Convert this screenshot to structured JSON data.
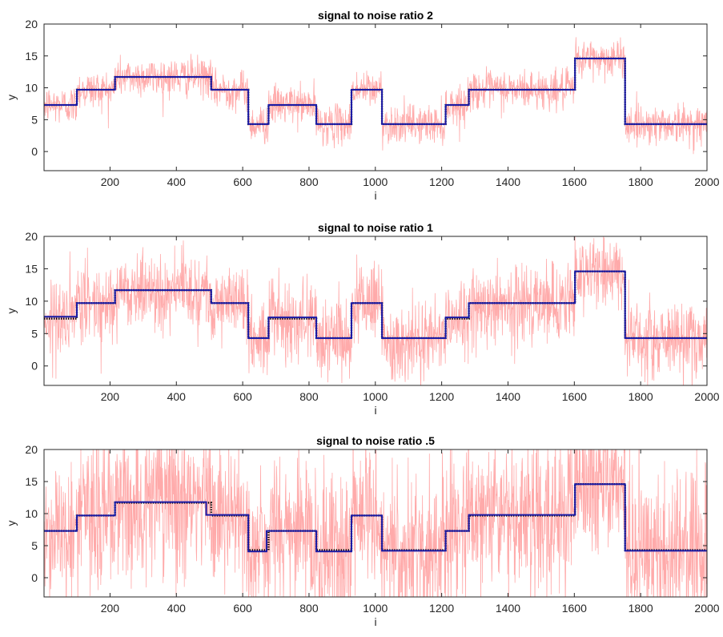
{
  "chart_data": [
    {
      "type": "line",
      "title": "signal to noise ratio 2",
      "xlabel": "i",
      "ylabel": "y",
      "xlim": [
        1,
        2000
      ],
      "ylim": [
        -3,
        20
      ],
      "xticks": [
        200,
        400,
        600,
        800,
        1000,
        1200,
        1400,
        1600,
        1800,
        2000
      ],
      "yticks": [
        0,
        5,
        10,
        15,
        20
      ],
      "noise_amplitude": 1.5,
      "grid": false,
      "series": [
        {
          "kind": "noisy_observations",
          "color": "#ffaaaa",
          "segments": [
            {
              "start": 1,
              "end": 100,
              "level": 7.3
            },
            {
              "start": 100,
              "end": 215,
              "level": 9.7
            },
            {
              "start": 215,
              "end": 505,
              "level": 11.7
            },
            {
              "start": 505,
              "end": 617,
              "level": 9.7
            },
            {
              "start": 617,
              "end": 678,
              "level": 4.3
            },
            {
              "start": 678,
              "end": 822,
              "level": 7.3
            },
            {
              "start": 822,
              "end": 928,
              "level": 4.3
            },
            {
              "start": 928,
              "end": 1020,
              "level": 9.7
            },
            {
              "start": 1020,
              "end": 1212,
              "level": 4.3
            },
            {
              "start": 1212,
              "end": 1282,
              "level": 7.3
            },
            {
              "start": 1282,
              "end": 1602,
              "level": 9.7
            },
            {
              "start": 1602,
              "end": 1753,
              "level": 14.6
            },
            {
              "start": 1753,
              "end": 2000,
              "level": 4.3
            }
          ]
        },
        {
          "kind": "true_signal",
          "color": "#000000",
          "segments": [
            {
              "start": 1,
              "end": 100,
              "level": 7.3
            },
            {
              "start": 100,
              "end": 215,
              "level": 9.7
            },
            {
              "start": 215,
              "end": 505,
              "level": 11.7
            },
            {
              "start": 505,
              "end": 617,
              "level": 9.7
            },
            {
              "start": 617,
              "end": 678,
              "level": 4.3
            },
            {
              "start": 678,
              "end": 822,
              "level": 7.3
            },
            {
              "start": 822,
              "end": 928,
              "level": 4.3
            },
            {
              "start": 928,
              "end": 1020,
              "level": 9.7
            },
            {
              "start": 1020,
              "end": 1212,
              "level": 4.3
            },
            {
              "start": 1212,
              "end": 1282,
              "level": 7.3
            },
            {
              "start": 1282,
              "end": 1602,
              "level": 9.7
            },
            {
              "start": 1602,
              "end": 1753,
              "level": 14.6
            },
            {
              "start": 1753,
              "end": 2000,
              "level": 4.3
            }
          ]
        },
        {
          "kind": "estimate",
          "color": "#1a1aa6",
          "segments": [
            {
              "start": 1,
              "end": 100,
              "level": 7.3
            },
            {
              "start": 100,
              "end": 215,
              "level": 9.7
            },
            {
              "start": 215,
              "end": 505,
              "level": 11.7
            },
            {
              "start": 505,
              "end": 617,
              "level": 9.7
            },
            {
              "start": 617,
              "end": 678,
              "level": 4.3
            },
            {
              "start": 678,
              "end": 822,
              "level": 7.3
            },
            {
              "start": 822,
              "end": 928,
              "level": 4.3
            },
            {
              "start": 928,
              "end": 1020,
              "level": 9.7
            },
            {
              "start": 1020,
              "end": 1212,
              "level": 4.3
            },
            {
              "start": 1212,
              "end": 1282,
              "level": 7.3
            },
            {
              "start": 1282,
              "end": 1602,
              "level": 9.7
            },
            {
              "start": 1602,
              "end": 1753,
              "level": 14.6
            },
            {
              "start": 1753,
              "end": 2000,
              "level": 4.3
            }
          ]
        }
      ]
    },
    {
      "type": "line",
      "title": "signal to noise ratio 1",
      "xlabel": "i",
      "ylabel": "y",
      "xlim": [
        1,
        2000
      ],
      "ylim": [
        -3,
        20
      ],
      "xticks": [
        200,
        400,
        600,
        800,
        1000,
        1200,
        1400,
        1600,
        1800,
        2000
      ],
      "yticks": [
        0,
        5,
        10,
        15,
        20
      ],
      "noise_amplitude": 3,
      "grid": false,
      "series": [
        {
          "kind": "noisy_observations",
          "color": "#ffaaaa",
          "segments": [
            {
              "start": 1,
              "end": 100,
              "level": 7.3
            },
            {
              "start": 100,
              "end": 215,
              "level": 9.7
            },
            {
              "start": 215,
              "end": 505,
              "level": 11.7
            },
            {
              "start": 505,
              "end": 617,
              "level": 9.7
            },
            {
              "start": 617,
              "end": 678,
              "level": 4.3
            },
            {
              "start": 678,
              "end": 822,
              "level": 7.3
            },
            {
              "start": 822,
              "end": 928,
              "level": 4.3
            },
            {
              "start": 928,
              "end": 1020,
              "level": 9.7
            },
            {
              "start": 1020,
              "end": 1212,
              "level": 4.3
            },
            {
              "start": 1212,
              "end": 1282,
              "level": 7.3
            },
            {
              "start": 1282,
              "end": 1602,
              "level": 9.7
            },
            {
              "start": 1602,
              "end": 1753,
              "level": 14.6
            },
            {
              "start": 1753,
              "end": 2000,
              "level": 4.3
            }
          ]
        },
        {
          "kind": "true_signal",
          "color": "#000000",
          "segments": [
            {
              "start": 1,
              "end": 100,
              "level": 7.3
            },
            {
              "start": 100,
              "end": 215,
              "level": 9.7
            },
            {
              "start": 215,
              "end": 505,
              "level": 11.7
            },
            {
              "start": 505,
              "end": 617,
              "level": 9.7
            },
            {
              "start": 617,
              "end": 678,
              "level": 4.3
            },
            {
              "start": 678,
              "end": 822,
              "level": 7.3
            },
            {
              "start": 822,
              "end": 928,
              "level": 4.3
            },
            {
              "start": 928,
              "end": 1020,
              "level": 9.7
            },
            {
              "start": 1020,
              "end": 1212,
              "level": 4.3
            },
            {
              "start": 1212,
              "end": 1282,
              "level": 7.3
            },
            {
              "start": 1282,
              "end": 1602,
              "level": 9.7
            },
            {
              "start": 1602,
              "end": 1753,
              "level": 14.6
            },
            {
              "start": 1753,
              "end": 2000,
              "level": 4.3
            }
          ]
        },
        {
          "kind": "estimate",
          "color": "#1a1aa6",
          "segments": [
            {
              "start": 1,
              "end": 100,
              "level": 7.6
            },
            {
              "start": 100,
              "end": 215,
              "level": 9.7
            },
            {
              "start": 215,
              "end": 505,
              "level": 11.7
            },
            {
              "start": 505,
              "end": 617,
              "level": 9.7
            },
            {
              "start": 617,
              "end": 678,
              "level": 4.3
            },
            {
              "start": 678,
              "end": 822,
              "level": 7.5
            },
            {
              "start": 822,
              "end": 928,
              "level": 4.3
            },
            {
              "start": 928,
              "end": 1020,
              "level": 9.7
            },
            {
              "start": 1020,
              "end": 1212,
              "level": 4.3
            },
            {
              "start": 1212,
              "end": 1282,
              "level": 7.5
            },
            {
              "start": 1282,
              "end": 1602,
              "level": 9.7
            },
            {
              "start": 1602,
              "end": 1753,
              "level": 14.6
            },
            {
              "start": 1753,
              "end": 2000,
              "level": 4.3
            }
          ]
        }
      ]
    },
    {
      "type": "line",
      "title": "signal to noise ratio .5",
      "xlabel": "i",
      "ylabel": "y",
      "xlim": [
        1,
        2000
      ],
      "ylim": [
        -3,
        20
      ],
      "xticks": [
        200,
        400,
        600,
        800,
        1000,
        1200,
        1400,
        1600,
        1800,
        2000
      ],
      "yticks": [
        0,
        5,
        10,
        15,
        20
      ],
      "noise_amplitude": 6,
      "grid": false,
      "series": [
        {
          "kind": "noisy_observations",
          "color": "#ffaaaa",
          "segments": [
            {
              "start": 1,
              "end": 100,
              "level": 7.3
            },
            {
              "start": 100,
              "end": 215,
              "level": 9.7
            },
            {
              "start": 215,
              "end": 505,
              "level": 11.7
            },
            {
              "start": 505,
              "end": 617,
              "level": 9.7
            },
            {
              "start": 617,
              "end": 678,
              "level": 4.3
            },
            {
              "start": 678,
              "end": 822,
              "level": 7.3
            },
            {
              "start": 822,
              "end": 928,
              "level": 4.3
            },
            {
              "start": 928,
              "end": 1020,
              "level": 9.7
            },
            {
              "start": 1020,
              "end": 1212,
              "level": 4.3
            },
            {
              "start": 1212,
              "end": 1282,
              "level": 7.3
            },
            {
              "start": 1282,
              "end": 1602,
              "level": 9.7
            },
            {
              "start": 1602,
              "end": 1753,
              "level": 14.6
            },
            {
              "start": 1753,
              "end": 2000,
              "level": 4.3
            }
          ]
        },
        {
          "kind": "true_signal",
          "color": "#000000",
          "segments": [
            {
              "start": 1,
              "end": 100,
              "level": 7.3
            },
            {
              "start": 100,
              "end": 215,
              "level": 9.7
            },
            {
              "start": 215,
              "end": 505,
              "level": 11.7
            },
            {
              "start": 505,
              "end": 617,
              "level": 9.7
            },
            {
              "start": 617,
              "end": 678,
              "level": 4.3
            },
            {
              "start": 678,
              "end": 822,
              "level": 7.3
            },
            {
              "start": 822,
              "end": 928,
              "level": 4.3
            },
            {
              "start": 928,
              "end": 1020,
              "level": 9.7
            },
            {
              "start": 1020,
              "end": 1212,
              "level": 4.3
            },
            {
              "start": 1212,
              "end": 1282,
              "level": 7.3
            },
            {
              "start": 1282,
              "end": 1602,
              "level": 9.7
            },
            {
              "start": 1602,
              "end": 1753,
              "level": 14.6
            },
            {
              "start": 1753,
              "end": 2000,
              "level": 4.3
            }
          ]
        },
        {
          "kind": "estimate",
          "color": "#1a1aa6",
          "segments": [
            {
              "start": 1,
              "end": 100,
              "level": 7.3
            },
            {
              "start": 100,
              "end": 215,
              "level": 9.7
            },
            {
              "start": 215,
              "end": 490,
              "level": 11.8
            },
            {
              "start": 490,
              "end": 617,
              "level": 9.8
            },
            {
              "start": 617,
              "end": 672,
              "level": 4.1
            },
            {
              "start": 672,
              "end": 822,
              "level": 7.3
            },
            {
              "start": 822,
              "end": 928,
              "level": 4.1
            },
            {
              "start": 928,
              "end": 1020,
              "level": 9.7
            },
            {
              "start": 1020,
              "end": 1212,
              "level": 4.2
            },
            {
              "start": 1212,
              "end": 1282,
              "level": 7.3
            },
            {
              "start": 1282,
              "end": 1602,
              "level": 9.8
            },
            {
              "start": 1602,
              "end": 1753,
              "level": 14.6
            },
            {
              "start": 1753,
              "end": 2000,
              "level": 4.2
            }
          ]
        }
      ]
    }
  ]
}
